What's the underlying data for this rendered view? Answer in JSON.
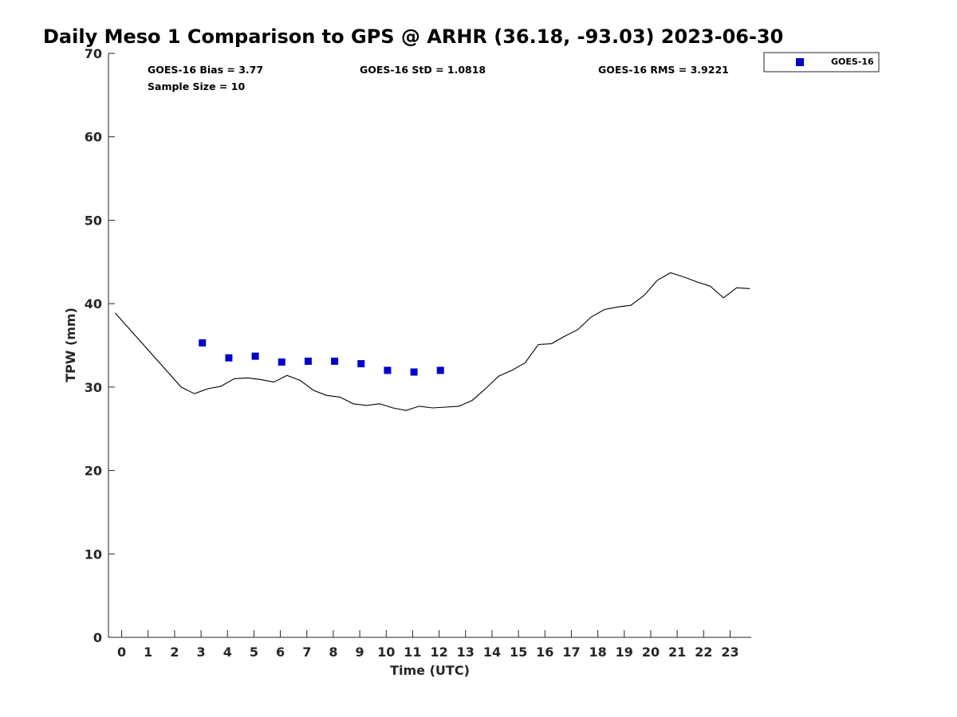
{
  "chart_data": {
    "type": "scatter",
    "title": "Daily Meso 1 Comparison to GPS @ ARHR (36.18, -93.03) 2023-06-30",
    "xlabel": "Time (UTC)",
    "ylabel": "TPW (mm)",
    "xlim": [
      -0.5,
      23.8
    ],
    "ylim": [
      0,
      70
    ],
    "x_ticks": [
      0,
      1,
      2,
      3,
      4,
      5,
      6,
      7,
      8,
      9,
      10,
      11,
      12,
      13,
      14,
      15,
      16,
      17,
      18,
      19,
      20,
      21,
      22,
      23
    ],
    "y_ticks": [
      0,
      10,
      20,
      30,
      40,
      50,
      60,
      70
    ],
    "grid": false,
    "legend_position": "top-right-outside",
    "stats": {
      "bias": "GOES-16 Bias = 3.77",
      "std": "GOES-16 StD = 1.0818",
      "rms": "GOES-16 RMS = 3.9221",
      "sample": "Sample Size = 10"
    },
    "series": [
      {
        "name": "GOES-16",
        "kind": "scatter",
        "color": "#0000cc",
        "x": [
          3.05,
          4.05,
          5.05,
          6.05,
          7.05,
          8.05,
          9.05,
          10.05,
          11.05,
          12.05
        ],
        "y": [
          35.3,
          33.5,
          33.7,
          33.0,
          33.1,
          33.1,
          32.8,
          32.0,
          31.8,
          32.0
        ]
      },
      {
        "kind": "line",
        "color": "#000000",
        "x": [
          -0.25,
          2.25,
          2.75,
          3.25,
          3.75,
          4.25,
          4.75,
          5.25,
          5.75,
          6.25,
          6.75,
          7.25,
          7.75,
          8.25,
          8.75,
          9.25,
          9.75,
          10.25,
          10.75,
          11.25,
          11.75,
          12.25,
          12.75,
          13.25,
          13.75,
          14.25,
          14.75,
          15.25,
          15.75,
          16.25,
          16.75,
          17.25,
          17.75,
          18.25,
          18.75,
          19.25,
          19.75,
          20.25,
          20.75,
          21.25,
          21.75,
          22.25,
          22.75,
          23.25,
          23.75
        ],
        "y": [
          38.9,
          30.0,
          29.2,
          29.8,
          30.1,
          31.0,
          31.1,
          30.9,
          30.6,
          31.4,
          30.8,
          29.6,
          29.0,
          28.8,
          28.0,
          27.8,
          28.0,
          27.5,
          27.2,
          27.7,
          27.5,
          27.6,
          27.7,
          28.4,
          29.8,
          31.3,
          32.0,
          32.9,
          35.1,
          35.2,
          36.1,
          36.9,
          38.4,
          39.3,
          39.6,
          39.8,
          41.0,
          42.8,
          43.7,
          43.2,
          42.6,
          42.1,
          40.7,
          41.9,
          41.8
        ]
      }
    ]
  }
}
